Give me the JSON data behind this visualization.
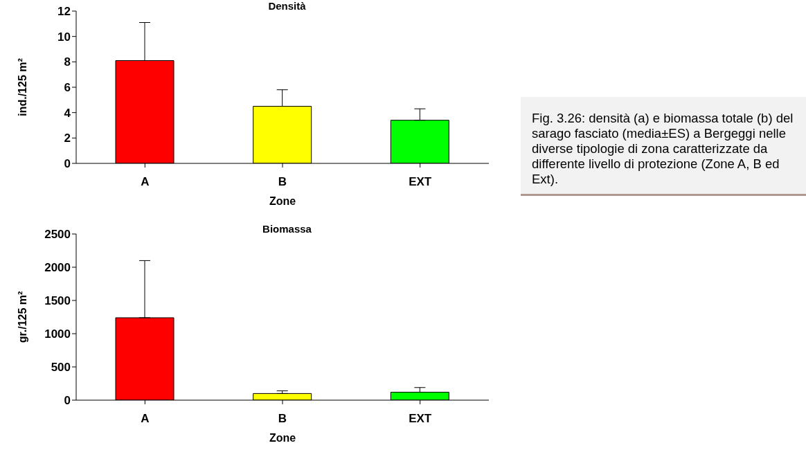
{
  "chart_data": [
    {
      "type": "bar",
      "title": "Densità",
      "xlabel": "Zone",
      "ylabel": "ind./125 m²",
      "categories": [
        "A",
        "B",
        "EXT"
      ],
      "values": [
        8.1,
        4.5,
        3.4
      ],
      "colors": [
        "#ff0000",
        "#ffff00",
        "#00ff00"
      ],
      "errors": [
        [
          8.1,
          11.1
        ],
        [
          4.5,
          5.8
        ],
        [
          3.4,
          4.3
        ]
      ],
      "ylim": [
        0,
        12
      ],
      "yticks": [
        0,
        2,
        4,
        6,
        8,
        10,
        12
      ],
      "grid": false,
      "legend": false
    },
    {
      "type": "bar",
      "title": "Biomassa",
      "xlabel": "Zone",
      "ylabel": "gr./125 m²",
      "categories": [
        "A",
        "B",
        "EXT"
      ],
      "values": [
        1240,
        100,
        120
      ],
      "colors": [
        "#ff0000",
        "#ffff00",
        "#00ff00"
      ],
      "errors": [
        [
          1240,
          2100
        ],
        [
          100,
          140
        ],
        [
          120,
          190
        ]
      ],
      "ylim": [
        0,
        2500
      ],
      "yticks": [
        0,
        500,
        1000,
        1500,
        2000,
        2500
      ],
      "grid": false,
      "legend": false
    },
    {
      "type": "other",
      "annotations": [
        "Fig. 3.26: densità (a) e biomassa  totale (b) del sarago fasciato (media±ES) a Bergeggi nelle diverse tipologie di zona caratterizzate da differente livello di protezione (Zone A, B ed Ext)."
      ]
    }
  ]
}
